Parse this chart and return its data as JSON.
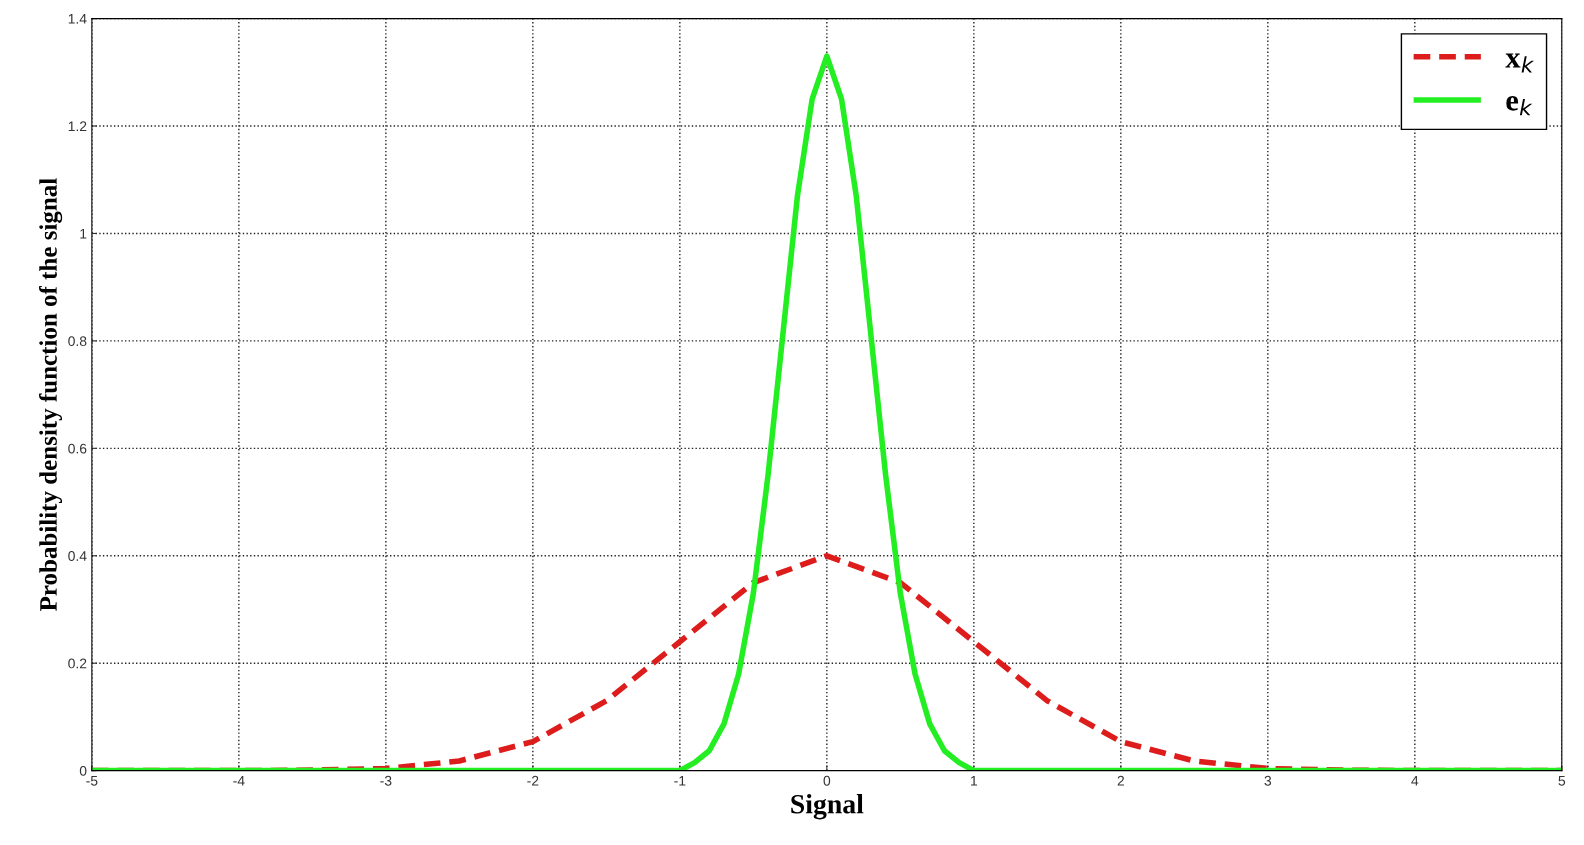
{
  "chart_data": {
    "type": "line",
    "xlabel": "Signal",
    "ylabel": "Probability density function of the signal",
    "xlim": [
      -5,
      5
    ],
    "ylim": [
      0,
      1.4
    ],
    "xticks": [
      -5,
      -4,
      -3,
      -2,
      -1,
      0,
      1,
      2,
      3,
      4,
      5
    ],
    "yticks": [
      0,
      0.2,
      0.4,
      0.6,
      0.8,
      1,
      1.2,
      1.4
    ],
    "grid": true,
    "legend": "top right",
    "series": [
      {
        "name": "x$_{k}$",
        "color": "#dd1c1c",
        "line_style": "dashed",
        "x": [
          -5,
          -4,
          -3.5,
          -3,
          -2.5,
          -2,
          -1.5,
          -1,
          -0.5,
          0,
          0.5,
          1,
          1.5,
          2,
          2.5,
          3,
          3.5,
          4,
          5
        ],
        "values": [
          0,
          0,
          0.001,
          0.004,
          0.018,
          0.054,
          0.13,
          0.24,
          0.35,
          0.4,
          0.35,
          0.24,
          0.13,
          0.054,
          0.018,
          0.004,
          0.001,
          0,
          0
        ]
      },
      {
        "name": "e$_{k}$",
        "color": "#22ee22",
        "line_style": "solid",
        "x": [
          -5,
          -1,
          -0.9,
          -0.8,
          -0.7,
          -0.6,
          -0.5,
          -0.4,
          -0.3,
          -0.2,
          -0.1,
          0,
          0.1,
          0.2,
          0.3,
          0.4,
          0.5,
          0.6,
          0.7,
          0.8,
          0.9,
          1,
          5
        ],
        "values": [
          0,
          0,
          0.015,
          0.037,
          0.087,
          0.18,
          0.33,
          0.55,
          0.81,
          1.07,
          1.25,
          1.33,
          1.25,
          1.07,
          0.81,
          0.55,
          0.33,
          0.18,
          0.087,
          0.037,
          0.015,
          0,
          0
        ]
      }
    ]
  }
}
